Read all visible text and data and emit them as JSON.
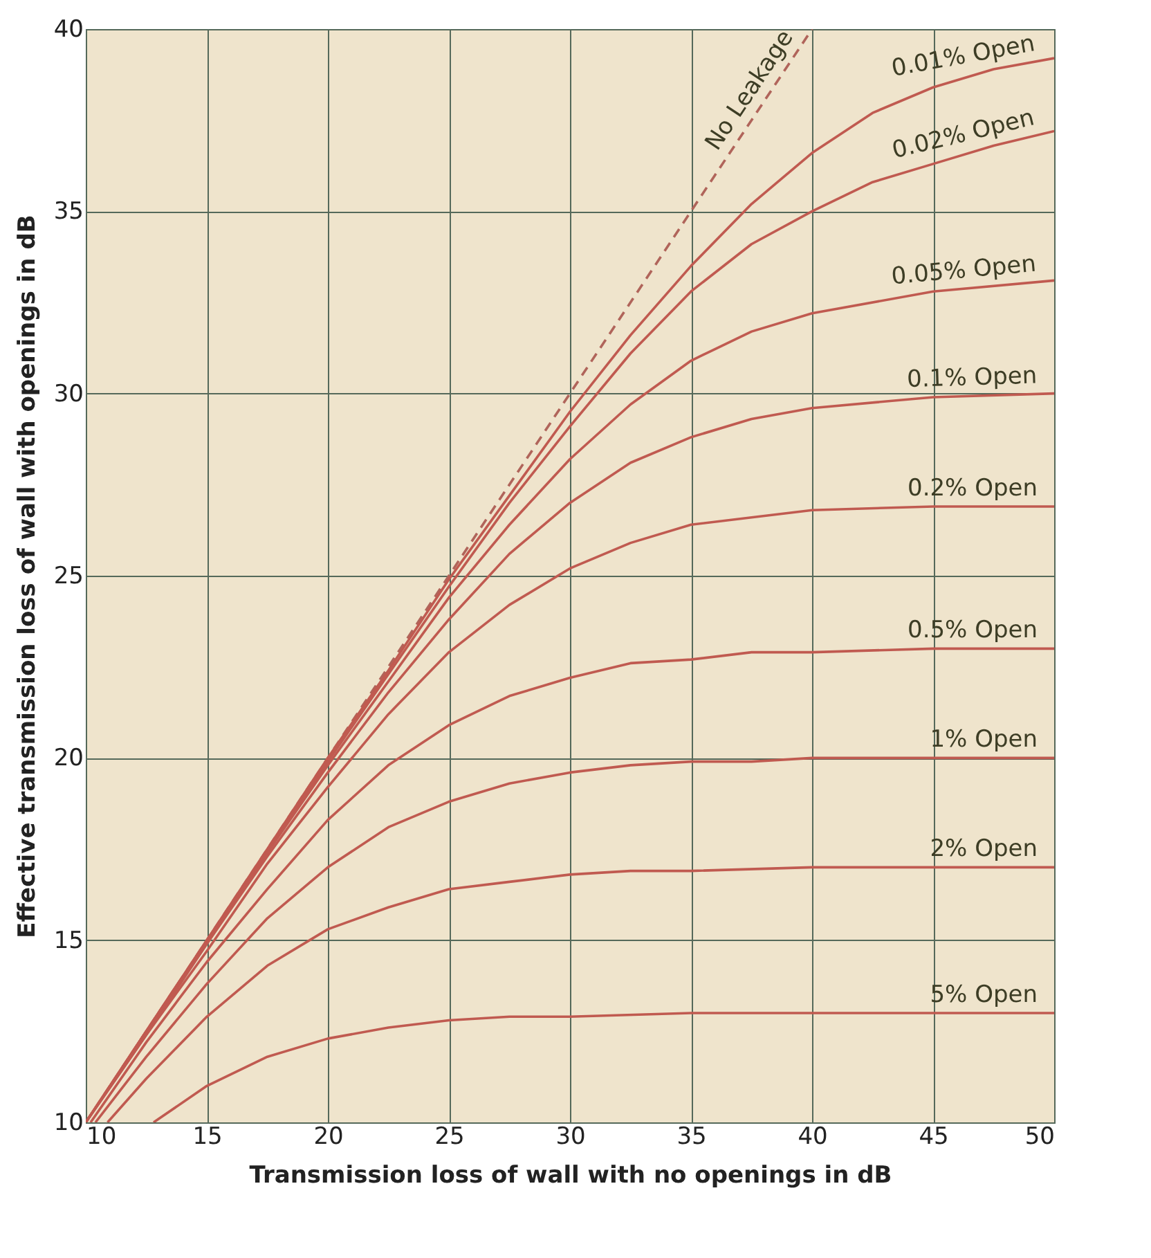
{
  "chart_data": {
    "type": "line",
    "xlabel": "Transmission loss of wall with no openings in dB",
    "ylabel": "Effective transmission loss of wall with openings in dB",
    "xlim": [
      10,
      50
    ],
    "ylim": [
      10,
      40
    ],
    "xticks": [
      10,
      15,
      20,
      25,
      30,
      35,
      40,
      45,
      50
    ],
    "yticks": [
      10,
      15,
      20,
      25,
      30,
      35,
      40
    ],
    "grid": true,
    "line_style": "solid",
    "series": [
      {
        "name": "No Leakage",
        "color": "#b0645a",
        "line_style": "dashed",
        "x": [
          10,
          40
        ],
        "values": [
          10,
          40
        ]
      },
      {
        "name": "0.01% Open",
        "color": "#c05a50",
        "x": [
          10,
          12.5,
          15,
          17.5,
          20,
          22.5,
          25,
          27.5,
          30,
          32.5,
          35,
          37.5,
          40,
          42.5,
          45,
          47.5,
          50
        ],
        "values": [
          10,
          12.5,
          15,
          17.5,
          20,
          22.4,
          24.9,
          27.2,
          29.5,
          31.6,
          33.5,
          35.2,
          36.6,
          37.7,
          38.4,
          38.9,
          39.2
        ]
      },
      {
        "name": "0.02% Open",
        "color": "#c05a50",
        "x": [
          10,
          12.5,
          15,
          17.5,
          20,
          22.5,
          25,
          27.5,
          30,
          32.5,
          35,
          37.5,
          40,
          42.5,
          45,
          47.5,
          50
        ],
        "values": [
          10,
          12.5,
          15,
          17.4,
          19.9,
          22.3,
          24.7,
          27.0,
          29.1,
          31.1,
          32.8,
          34.1,
          35.0,
          35.8,
          36.3,
          36.8,
          37.2
        ]
      },
      {
        "name": "0.05% Open",
        "color": "#c05a50",
        "x": [
          10,
          12.5,
          15,
          17.5,
          20,
          22.5,
          25,
          27.5,
          30,
          32.5,
          35,
          37.5,
          40,
          45,
          50
        ],
        "values": [
          10,
          12.5,
          14.9,
          17.4,
          19.8,
          22.1,
          24.4,
          26.4,
          28.2,
          29.7,
          30.9,
          31.7,
          32.2,
          32.8,
          33.1
        ]
      },
      {
        "name": "0.1% Open",
        "color": "#c05a50",
        "x": [
          10,
          12.5,
          15,
          17.5,
          20,
          22.5,
          25,
          27.5,
          30,
          32.5,
          35,
          37.5,
          40,
          45,
          50
        ],
        "values": [
          10,
          12.4,
          14.9,
          17.3,
          19.6,
          21.8,
          23.8,
          25.6,
          27.0,
          28.1,
          28.8,
          29.3,
          29.6,
          29.9,
          30.0
        ]
      },
      {
        "name": "0.2% Open",
        "color": "#c05a50",
        "x": [
          10,
          12.5,
          15,
          17.5,
          20,
          22.5,
          25,
          27.5,
          30,
          32.5,
          35,
          37.5,
          40,
          45,
          50
        ],
        "values": [
          10,
          12.4,
          14.7,
          17.1,
          19.2,
          21.2,
          22.9,
          24.2,
          25.2,
          25.9,
          26.4,
          26.6,
          26.8,
          26.9,
          26.9
        ]
      },
      {
        "name": "0.5% Open",
        "color": "#c05a50",
        "x": [
          10.2,
          12.5,
          15,
          17.5,
          20,
          22.5,
          25,
          27.5,
          30,
          32.5,
          35,
          37.5,
          40,
          45,
          50
        ],
        "values": [
          10,
          12.2,
          14.4,
          16.4,
          18.3,
          19.8,
          20.9,
          21.7,
          22.2,
          22.6,
          22.7,
          22.9,
          22.9,
          23.0,
          23.0
        ]
      },
      {
        "name": "1% Open",
        "color": "#c05a50",
        "x": [
          10.4,
          12.5,
          15,
          17.5,
          20,
          22.5,
          25,
          27.5,
          30,
          32.5,
          35,
          37.5,
          40,
          45,
          50
        ],
        "values": [
          10,
          11.8,
          13.8,
          15.6,
          17.0,
          18.1,
          18.8,
          19.3,
          19.6,
          19.8,
          19.9,
          19.9,
          20.0,
          20.0,
          20.0
        ]
      },
      {
        "name": "2% Open",
        "color": "#c05a50",
        "x": [
          10.9,
          12.5,
          15,
          17.5,
          20,
          22.5,
          25,
          27.5,
          30,
          32.5,
          35,
          40,
          45,
          50
        ],
        "values": [
          10,
          11.2,
          12.9,
          14.3,
          15.3,
          15.9,
          16.4,
          16.6,
          16.8,
          16.9,
          16.9,
          17.0,
          17.0,
          17.0
        ]
      },
      {
        "name": "5% Open",
        "color": "#c05a50",
        "x": [
          12.8,
          15,
          17.5,
          20,
          22.5,
          25,
          27.5,
          30,
          35,
          40,
          45,
          50
        ],
        "values": [
          10,
          11.0,
          11.8,
          12.3,
          12.6,
          12.8,
          12.9,
          12.9,
          13.0,
          13.0,
          13.0,
          13.0
        ]
      }
    ]
  }
}
